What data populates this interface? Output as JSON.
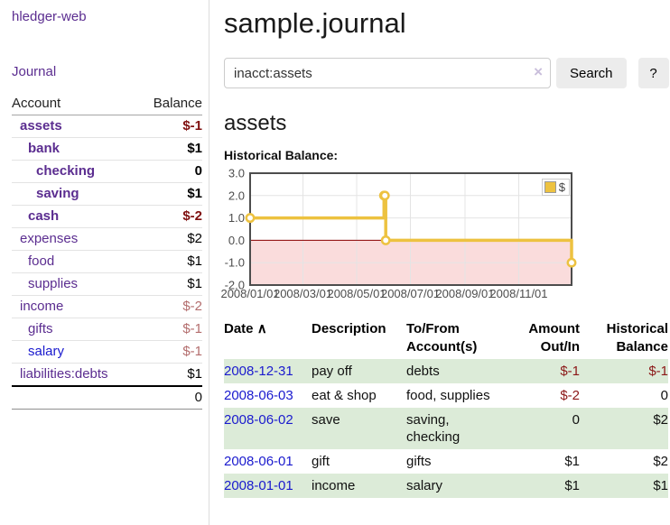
{
  "sidebar": {
    "brand": "hledger-web",
    "journal_link": "Journal",
    "accounts_table": {
      "headers": {
        "account": "Account",
        "balance": "Balance"
      },
      "rows": [
        {
          "name": "assets",
          "balance": "$-1"
        },
        {
          "name": "bank",
          "balance": "$1"
        },
        {
          "name": "checking",
          "balance": "0"
        },
        {
          "name": "saving",
          "balance": "$1"
        },
        {
          "name": "cash",
          "balance": "$-2"
        },
        {
          "name": "expenses",
          "balance": "$2"
        },
        {
          "name": "food",
          "balance": "$1"
        },
        {
          "name": "supplies",
          "balance": "$1"
        },
        {
          "name": "income",
          "balance": "$-2"
        },
        {
          "name": "gifts",
          "balance": "$-1"
        },
        {
          "name": "salary",
          "balance": "$-1"
        },
        {
          "name": "liabilities:debts",
          "balance": "$1"
        }
      ],
      "total": "0"
    }
  },
  "header": {
    "title": "sample.journal"
  },
  "search": {
    "value": "inacct:assets",
    "clear_icon": "×",
    "button_label": "Search",
    "help_label": "?"
  },
  "account_page": {
    "heading": "assets",
    "chart_title": "Historical Balance:"
  },
  "chart_data": {
    "type": "line",
    "step": true,
    "title": "Historical Balance",
    "series": [
      {
        "name": "$",
        "color": "#edc240",
        "points": [
          [
            "2008-01-01",
            1
          ],
          [
            "2008-06-01",
            2
          ],
          [
            "2008-06-02",
            2
          ],
          [
            "2008-06-03",
            0
          ],
          [
            "2008-12-31",
            -1
          ]
        ]
      }
    ],
    "ylim": [
      -2,
      3
    ],
    "yticks": [
      3,
      2,
      1,
      0,
      -1,
      -2
    ],
    "ytick_labels": [
      "3.0",
      "2.0",
      "1.0",
      "0.0",
      "-1.0",
      "-2.0"
    ],
    "xrange": [
      "2008-01-01",
      "2008-12-31"
    ],
    "xticks": [
      "2008-01-01",
      "2008-03-01",
      "2008-05-01",
      "2008-07-01",
      "2008-09-01",
      "2008-11-01"
    ],
    "xtick_labels": [
      "2008/01/01",
      "2008/03/01",
      "2008/05/01",
      "2008/07/01",
      "2008/09/01",
      "2008/11/01"
    ],
    "legend": {
      "label": "$",
      "position": "top-right"
    },
    "grid": true,
    "negative_region_color": "#fadcdc",
    "zero_line_color": "#8b0000"
  },
  "register_table": {
    "headers": {
      "date": "Date",
      "sort_icon": "∧",
      "description": "Description",
      "accounts": "To/From Account(s)",
      "amount": "Amount Out/In",
      "balance": "Historical Balance"
    },
    "rows": [
      {
        "date": "2008-12-31",
        "description": "pay off",
        "accounts": "debts",
        "amount": "$-1",
        "balance": "$-1"
      },
      {
        "date": "2008-06-03",
        "description": "eat & shop",
        "accounts": "food, supplies",
        "amount": "$-2",
        "balance": "0"
      },
      {
        "date": "2008-06-02",
        "description": "save",
        "accounts": "saving, checking",
        "amount": "0",
        "balance": "$2"
      },
      {
        "date": "2008-06-01",
        "description": "gift",
        "accounts": "gifts",
        "amount": "$1",
        "balance": "$2"
      },
      {
        "date": "2008-01-01",
        "description": "income",
        "accounts": "salary",
        "amount": "$1",
        "balance": "$1"
      }
    ]
  }
}
